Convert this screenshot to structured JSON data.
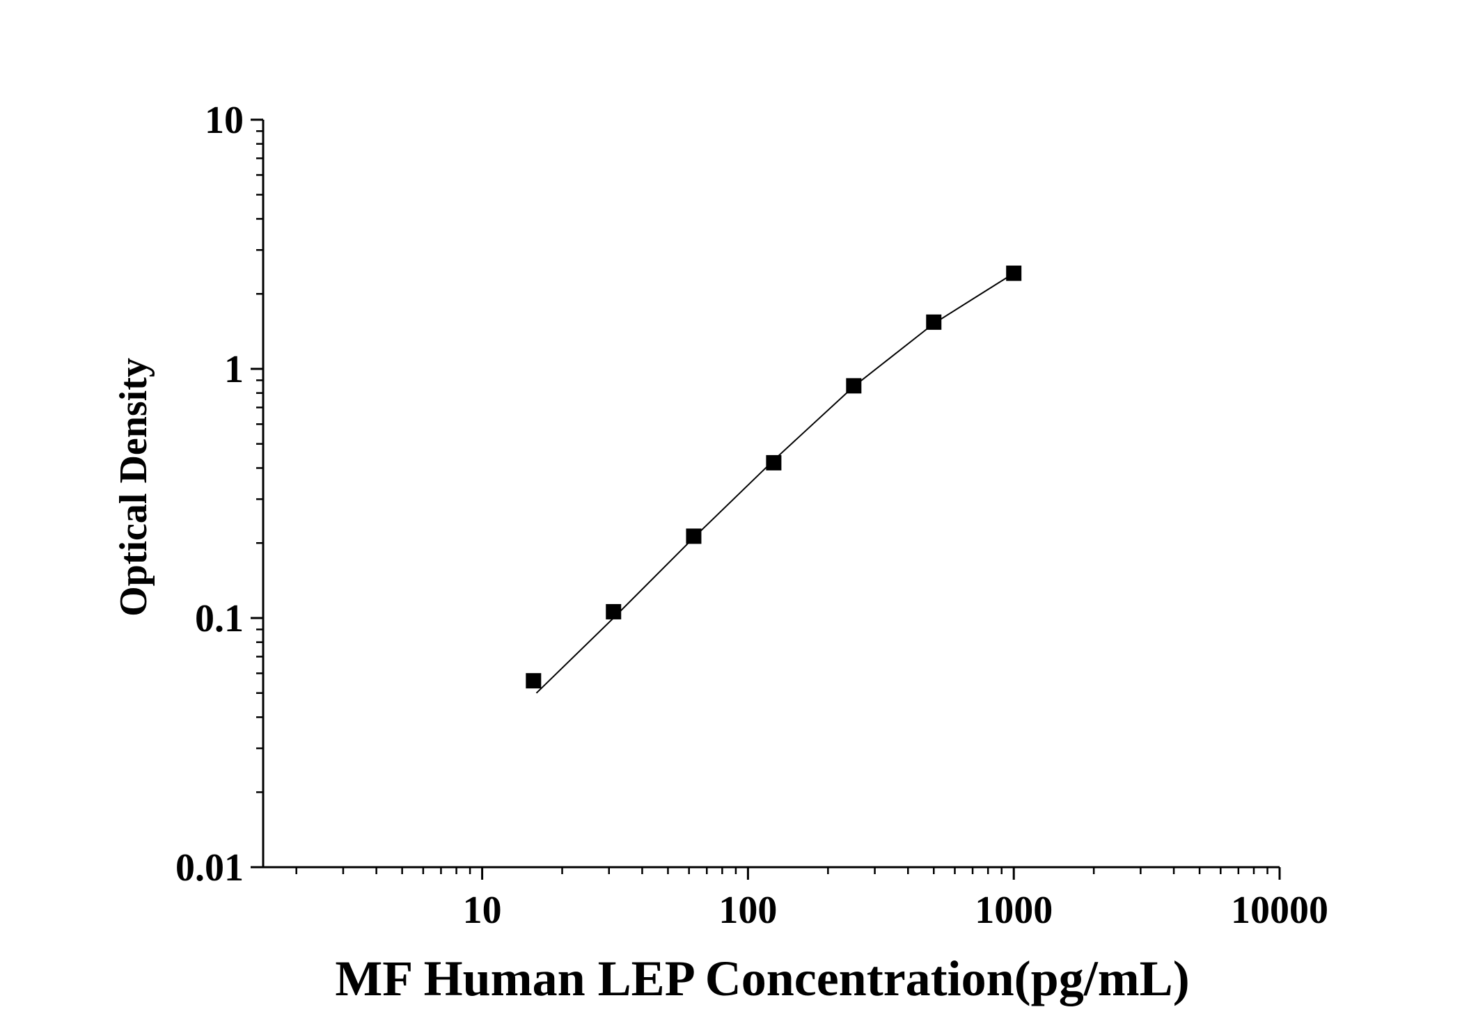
{
  "chart_data": {
    "type": "scatter",
    "title": "",
    "xlabel": "MF Human LEP Concentration(pg/mL)",
    "ylabel": "Optical Density",
    "x_scale": "log",
    "y_scale": "log",
    "xlim": [
      1.5,
      10000
    ],
    "ylim": [
      0.01,
      10
    ],
    "x_ticks": [
      {
        "value": 10,
        "label": "10"
      },
      {
        "value": 100,
        "label": "100"
      },
      {
        "value": 1000,
        "label": "1000"
      },
      {
        "value": 10000,
        "label": "10000"
      }
    ],
    "y_ticks": [
      {
        "value": 0.01,
        "label": "0.01"
      },
      {
        "value": 0.1,
        "label": "0.1"
      },
      {
        "value": 1,
        "label": "1"
      },
      {
        "value": 10,
        "label": "10"
      }
    ],
    "grid": false,
    "legend": "none",
    "series": [
      {
        "marker": "square",
        "color": "#000000",
        "x": [
          15.6,
          31.2,
          62.5,
          125,
          250,
          500,
          1000
        ],
        "y": [
          0.056,
          0.106,
          0.213,
          0.42,
          0.855,
          1.54,
          2.42
        ]
      }
    ],
    "fit_curve": {
      "color": "#000000",
      "x": [
        16,
        31.2,
        62.5,
        125,
        250,
        500,
        1000
      ],
      "y": [
        0.05,
        0.1,
        0.21,
        0.43,
        0.85,
        1.52,
        2.42
      ]
    }
  }
}
